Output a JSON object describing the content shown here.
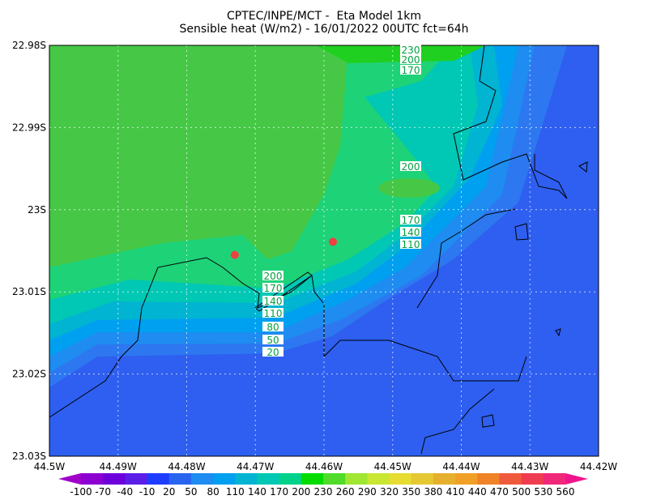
{
  "header": {
    "title": "CPTEC/INPE/MCT -  Eta Model 1km",
    "subtitle": "Sensible heat (W/m2) - 16/01/2022 00UTC fct=64h"
  },
  "map": {
    "lonlim": [
      44.5,
      44.42
    ],
    "latlim": [
      22.98,
      23.03
    ],
    "xticks": [
      {
        "value": 44.5,
        "label": "44.5W"
      },
      {
        "value": 44.49,
        "label": "44.49W"
      },
      {
        "value": 44.48,
        "label": "44.48W"
      },
      {
        "value": 44.47,
        "label": "44.47W"
      },
      {
        "value": 44.46,
        "label": "44.46W"
      },
      {
        "value": 44.45,
        "label": "44.45W"
      },
      {
        "value": 44.44,
        "label": "44.44W"
      },
      {
        "value": 44.43,
        "label": "44.43W"
      },
      {
        "value": 44.42,
        "label": "44.42W"
      }
    ],
    "yticks": [
      {
        "value": 22.98,
        "label": "22.98S"
      },
      {
        "value": 22.99,
        "label": "22.99S"
      },
      {
        "value": 23,
        "label": "23S"
      },
      {
        "value": 23.01,
        "label": "23.01S"
      },
      {
        "value": 23.02,
        "label": "23.02S"
      },
      {
        "value": 23.03,
        "label": "23.03S"
      }
    ],
    "markers": [
      {
        "lon": 44.473,
        "lat": 23.0055,
        "color": "#f04040"
      },
      {
        "lon": 44.4587,
        "lat": 23.0039,
        "color": "#f04040"
      }
    ],
    "contour_labels": [
      230,
      200,
      170,
      200,
      170,
      140,
      110,
      200,
      170,
      140,
      110,
      80,
      50,
      20
    ]
  },
  "colorbar": {
    "labels": [
      -100,
      -70,
      -40,
      -10,
      20,
      50,
      80,
      110,
      140,
      170,
      200,
      230,
      260,
      290,
      320,
      350,
      380,
      410,
      440,
      470,
      500,
      530,
      560
    ],
    "colors": [
      "#8c00d2",
      "#6e00dc",
      "#5a1ee6",
      "#1e3cff",
      "#2864f0",
      "#1e8cf0",
      "#00a0f0",
      "#00b4d2",
      "#00c8b4",
      "#00d28c",
      "#00dc00",
      "#50dc28",
      "#a0e632",
      "#c8e632",
      "#e6dc32",
      "#e6c832",
      "#e6af2d",
      "#f0a028",
      "#f08228",
      "#f05a3c",
      "#f03c50",
      "#f0287a"
    ],
    "under_color": "#a000c8",
    "over_color": "#f0148c"
  }
}
